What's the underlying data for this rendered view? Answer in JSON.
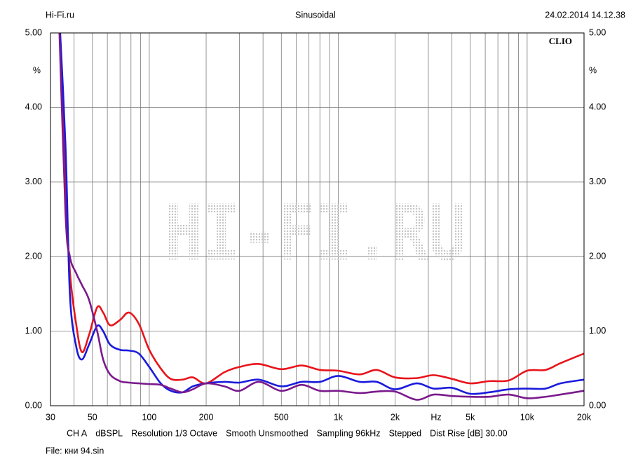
{
  "chart_data": {
    "type": "line",
    "title": "Sinusoidal",
    "source": "Hi-Fi.ru",
    "date": "24.02.2014 14.12.38",
    "brand": "CLIO",
    "watermark": "HI-FI.RU",
    "ylabel": "%",
    "xlabel": "Hz",
    "log_x": true,
    "grid": true,
    "xlim": [
      30,
      20000
    ],
    "xticks": [
      30,
      50,
      100,
      200,
      500,
      {
        "value": 1000,
        "label": "1k"
      },
      {
        "value": 2000,
        "label": "2k"
      },
      {
        "value": 5000,
        "label": "5k"
      },
      {
        "value": 10000,
        "label": "10k"
      },
      {
        "value": 20000,
        "label": "20k"
      }
    ],
    "xgrid": [
      40,
      60,
      70,
      80,
      90,
      300,
      400,
      600,
      700,
      800,
      900,
      3000,
      4000,
      6000,
      7000,
      8000,
      9000
    ],
    "ylim": [
      0,
      5
    ],
    "yticks": [
      {
        "value": 0,
        "label": "0.00"
      },
      {
        "value": 1,
        "label": "1.00"
      },
      {
        "value": 2,
        "label": "2.00"
      },
      {
        "value": 3,
        "label": "3.00"
      },
      {
        "value": 4,
        "label": "4.00"
      },
      {
        "value": 5,
        "label": "5.00"
      }
    ],
    "x": [
      33,
      36,
      38,
      41,
      44,
      48,
      53,
      57,
      62,
      70,
      78,
      88,
      100,
      115,
      130,
      150,
      170,
      200,
      250,
      300,
      380,
      500,
      640,
      800,
      1000,
      1300,
      1600,
      2000,
      2600,
      3200,
      4000,
      5000,
      6300,
      8000,
      10000,
      12500,
      15000,
      20000
    ],
    "series": [
      {
        "color": "#e8141b",
        "values": [
          5.5,
          3.0,
          1.8,
          1.1,
          0.72,
          0.95,
          1.32,
          1.25,
          1.08,
          1.15,
          1.25,
          1.1,
          0.75,
          0.5,
          0.36,
          0.35,
          0.38,
          0.3,
          0.45,
          0.52,
          0.56,
          0.49,
          0.54,
          0.48,
          0.47,
          0.42,
          0.48,
          0.38,
          0.37,
          0.41,
          0.36,
          0.3,
          0.33,
          0.34,
          0.47,
          0.48,
          0.57,
          0.7
        ]
      },
      {
        "color": "#1a1adc",
        "values": [
          5.5,
          3.5,
          1.5,
          0.8,
          0.62,
          0.82,
          1.07,
          1.0,
          0.82,
          0.75,
          0.74,
          0.7,
          0.52,
          0.3,
          0.2,
          0.18,
          0.26,
          0.3,
          0.32,
          0.31,
          0.35,
          0.26,
          0.32,
          0.32,
          0.4,
          0.32,
          0.32,
          0.22,
          0.3,
          0.23,
          0.24,
          0.16,
          0.18,
          0.22,
          0.23,
          0.23,
          0.3,
          0.35
        ]
      },
      {
        "color": "#7a1a8c",
        "values": [
          5.5,
          2.6,
          2.0,
          1.78,
          1.62,
          1.42,
          1.0,
          0.62,
          0.42,
          0.33,
          0.31,
          0.3,
          0.29,
          0.28,
          0.23,
          0.18,
          0.22,
          0.3,
          0.26,
          0.2,
          0.32,
          0.2,
          0.28,
          0.2,
          0.2,
          0.17,
          0.19,
          0.19,
          0.08,
          0.15,
          0.13,
          0.12,
          0.12,
          0.15,
          0.1,
          0.12,
          0.15,
          0.2
        ]
      }
    ],
    "notes": [
      "CH A",
      "dBSPL",
      "Resolution 1/3 Octave",
      "Smooth Unsmoothed",
      "Sampling 96kHz",
      "Stepped",
      "Dist Rise [dB] 30.00"
    ],
    "file": "File: кни 94.sin"
  }
}
